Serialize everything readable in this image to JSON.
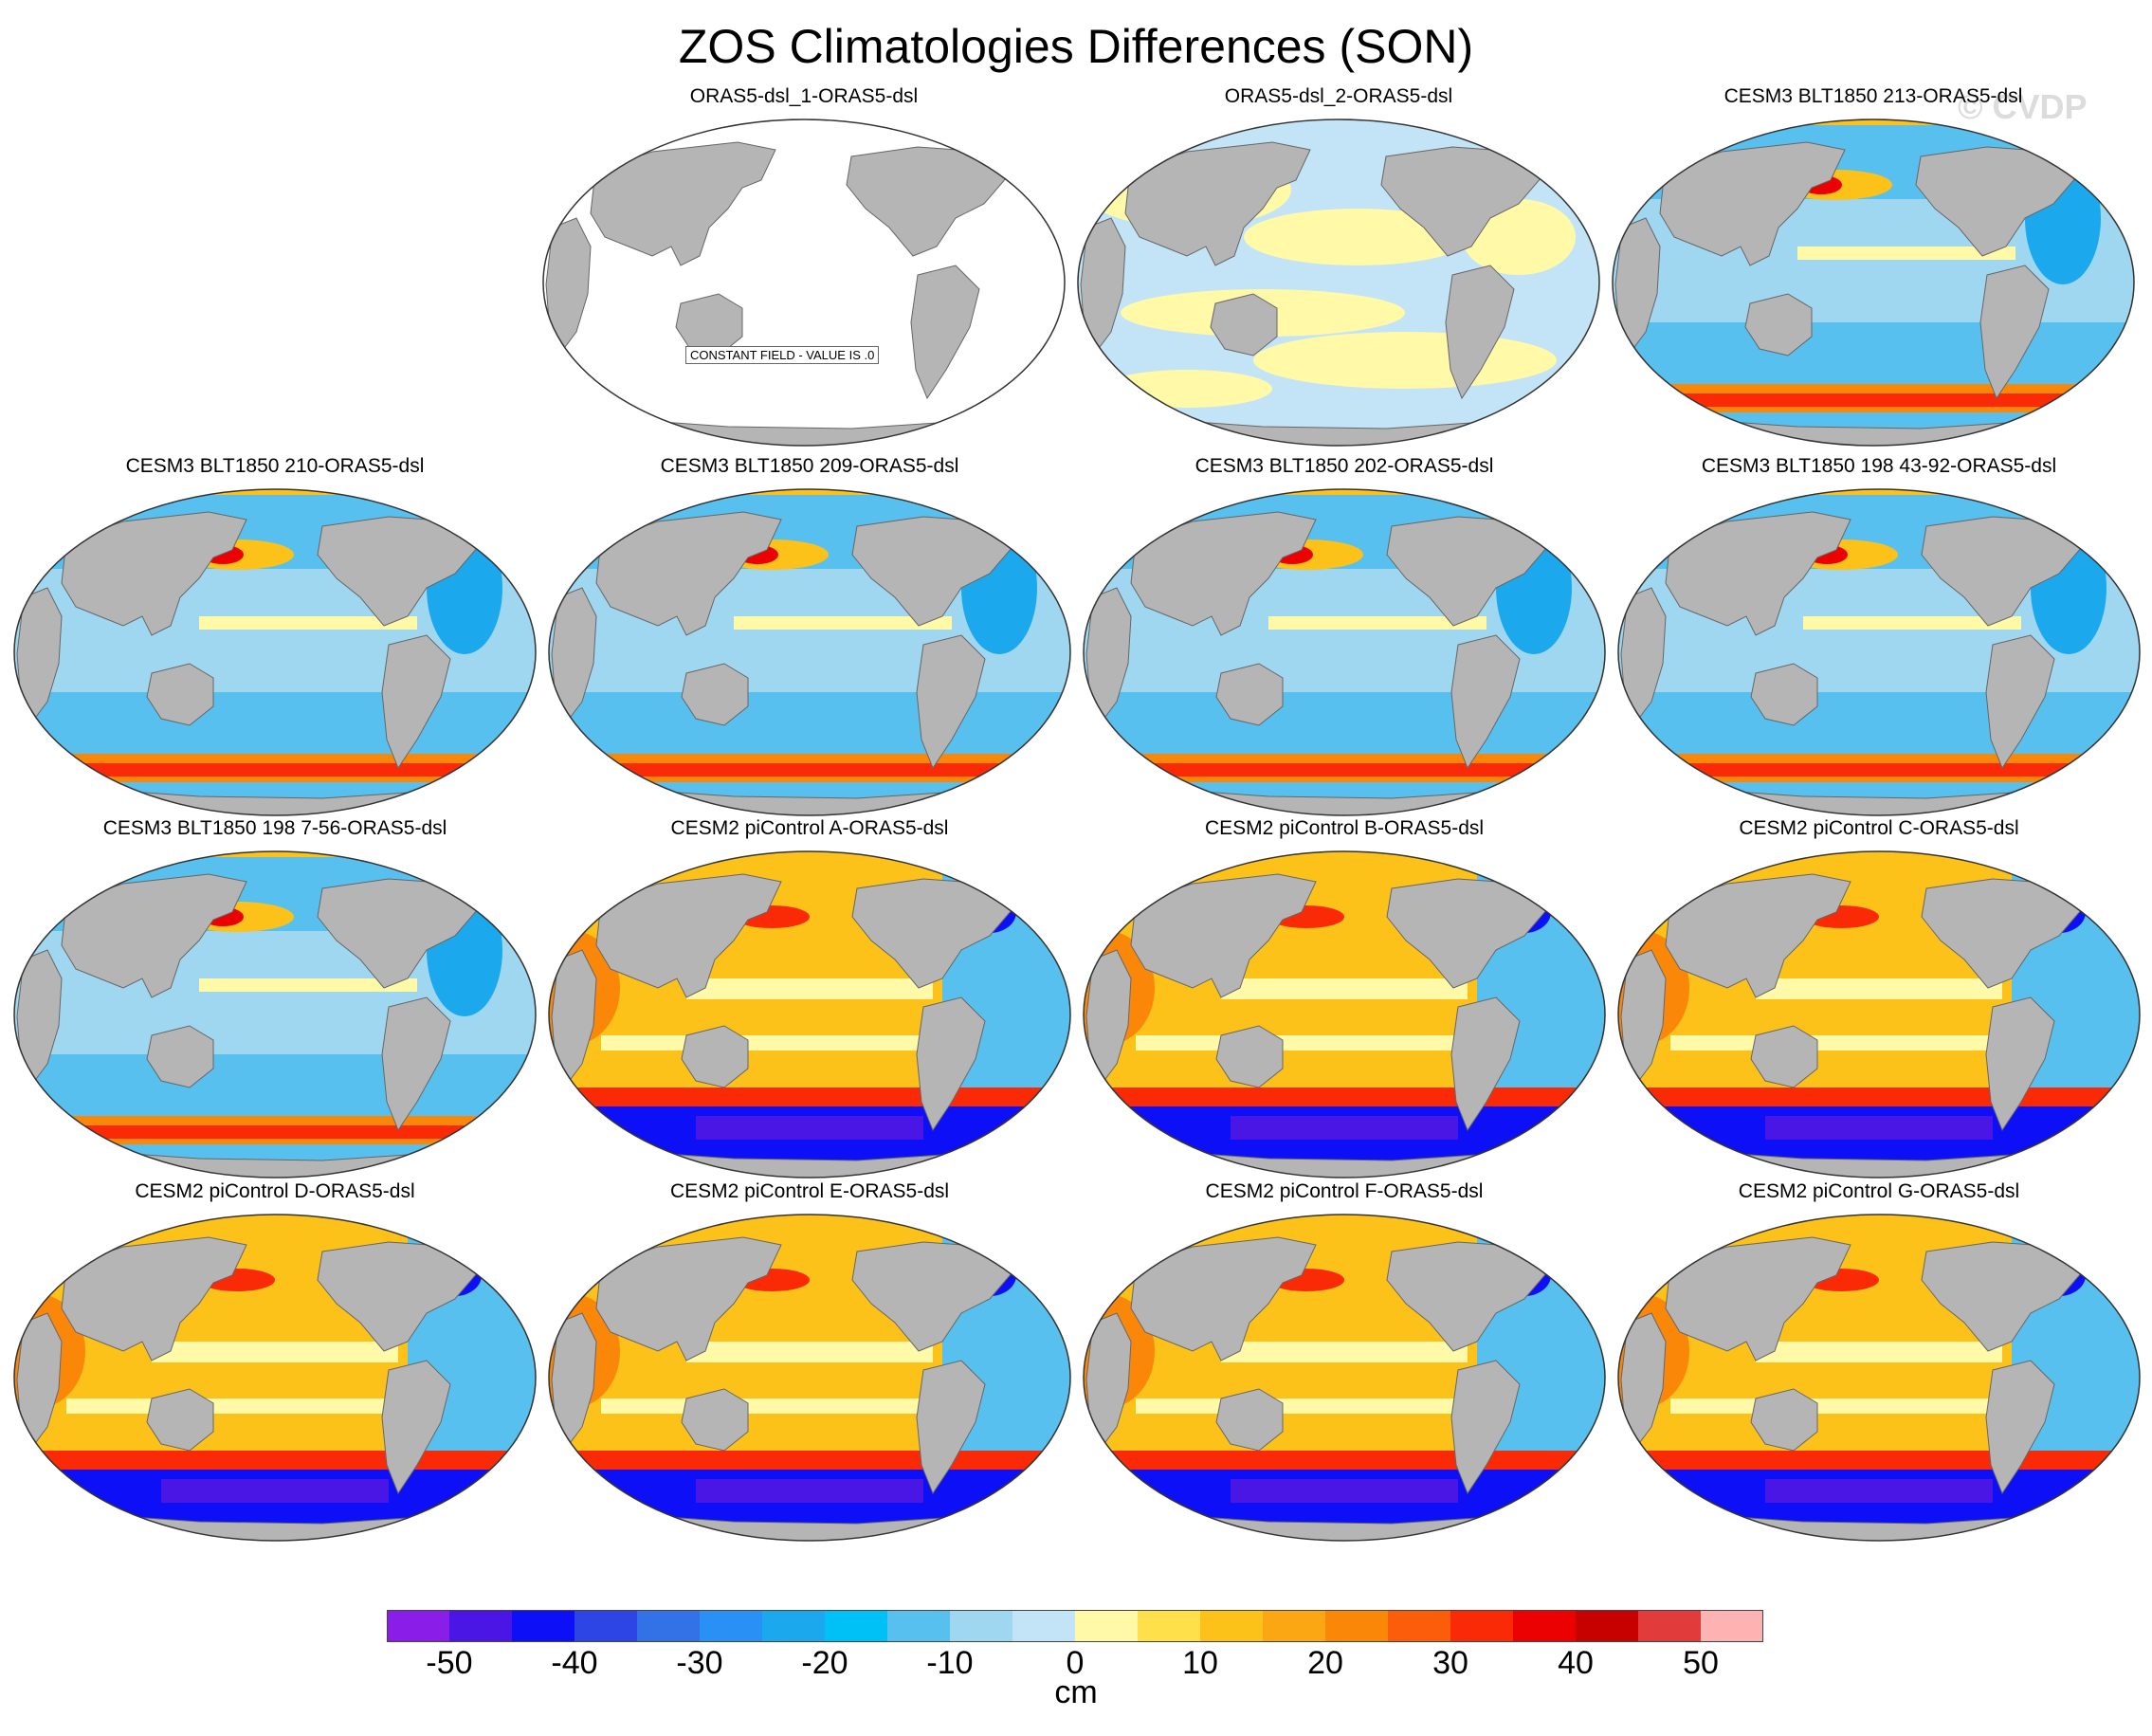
{
  "title": "ZOS Climatologies Differences (SON)",
  "watermark": "© CVDP",
  "colorbar": {
    "unit": "cm",
    "tick_labels": [
      "-50",
      "-40",
      "-30",
      "-20",
      "-10",
      "0",
      "10",
      "20",
      "30",
      "40",
      "50"
    ],
    "colors": [
      "#8a1de8",
      "#4a16e6",
      "#0d10f6",
      "#2e45e6",
      "#3272e6",
      "#2991f5",
      "#1ba8ec",
      "#00c1f6",
      "#57c0ee",
      "#9fd6f0",
      "#c2e4f6",
      "#fff9a8",
      "#fde04a",
      "#fcc21a",
      "#fba713",
      "#fb8709",
      "#fb5d0a",
      "#fb2a06",
      "#eb0101",
      "#c70000",
      "#e23b3b",
      "#fcb3b2"
    ]
  },
  "panels": [
    {
      "title": "ORAS5-dsl_1-ORAS5-dsl",
      "pattern": "constant",
      "constant_label": "CONSTANT FIELD - VALUE IS .0"
    },
    {
      "title": "ORAS5-dsl_2-ORAS5-dsl",
      "pattern": "near-zero"
    },
    {
      "title": "CESM3 BLT1850 213-ORAS5-dsl",
      "pattern": "cesm3"
    },
    {
      "title": "CESM3 BLT1850 210-ORAS5-dsl",
      "pattern": "cesm3"
    },
    {
      "title": "CESM3 BLT1850 209-ORAS5-dsl",
      "pattern": "cesm3"
    },
    {
      "title": "CESM3 BLT1850 202-ORAS5-dsl",
      "pattern": "cesm3"
    },
    {
      "title": "CESM3 BLT1850 198 43-92-ORAS5-dsl",
      "pattern": "cesm3"
    },
    {
      "title": "CESM3 BLT1850 198 7-56-ORAS5-dsl",
      "pattern": "cesm3"
    },
    {
      "title": "CESM2 piControl A-ORAS5-dsl",
      "pattern": "cesm2"
    },
    {
      "title": "CESM2 piControl B-ORAS5-dsl",
      "pattern": "cesm2"
    },
    {
      "title": "CESM2 piControl C-ORAS5-dsl",
      "pattern": "cesm2"
    },
    {
      "title": "CESM2 piControl D-ORAS5-dsl",
      "pattern": "cesm2"
    },
    {
      "title": "CESM2 piControl E-ORAS5-dsl",
      "pattern": "cesm2"
    },
    {
      "title": "CESM2 piControl F-ORAS5-dsl",
      "pattern": "cesm2"
    },
    {
      "title": "CESM2 piControl G-ORAS5-dsl",
      "pattern": "cesm2"
    }
  ]
}
